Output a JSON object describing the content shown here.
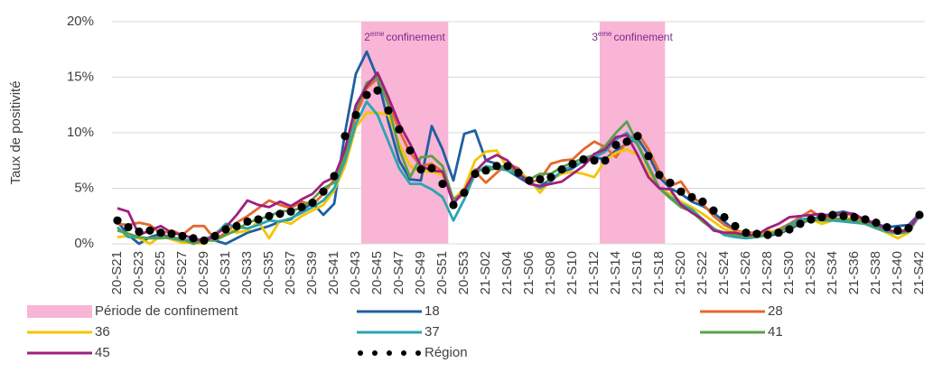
{
  "chart_data": {
    "type": "line",
    "ylabel": "Taux de positivité",
    "ylim": [
      0,
      20
    ],
    "yticks": [
      {
        "value": 0,
        "label": "0%"
      },
      {
        "value": 5,
        "label": "5%"
      },
      {
        "value": 10,
        "label": "10%"
      },
      {
        "value": 15,
        "label": "15%"
      },
      {
        "value": 20,
        "label": "20%"
      }
    ],
    "grid": true,
    "legend": "bottom",
    "annotations": [
      {
        "number": "2",
        "sup": "eme",
        "text": "confinement",
        "color": "#7b2a8c"
      },
      {
        "number": "3",
        "sup": "eme",
        "text": "confinement",
        "color": "#7b2a8c"
      }
    ],
    "categories": [
      "20-S21",
      null,
      "20-S23",
      null,
      "20-S25",
      null,
      "20-S27",
      null,
      "20-S29",
      null,
      "20-S31",
      null,
      "20-S33",
      null,
      "20-S35",
      null,
      "20-S37",
      null,
      "20-S39",
      null,
      "20-S41",
      null,
      "20-S43",
      null,
      "20-S45",
      null,
      "20-S47",
      null,
      "20-S49",
      null,
      "20-S51",
      null,
      "20-S53",
      null,
      "21-S02",
      null,
      "21-S04",
      null,
      "21-S06",
      null,
      "21-S08",
      null,
      "21-S10",
      null,
      "21-S12",
      null,
      "21-S14",
      null,
      "21-S16",
      null,
      "21-S18",
      null,
      "21-S20",
      null,
      "21-S22",
      null,
      "21-S24",
      null,
      "21-S26",
      null,
      "21-S28",
      null,
      "21-S30",
      null,
      "21-S32",
      null,
      "21-S34",
      null,
      "21-S36",
      null,
      "21-S38",
      null,
      "21-S40",
      null,
      "21-S42"
    ],
    "series": [
      {
        "name": "Période de confinement",
        "type": "bar",
        "color": "#f8b5d6",
        "values": [
          null,
          null,
          null,
          null,
          null,
          null,
          null,
          null,
          null,
          null,
          null,
          null,
          null,
          null,
          null,
          null,
          null,
          null,
          null,
          null,
          null,
          null,
          null,
          20,
          20,
          20,
          20,
          20,
          20,
          20,
          20,
          null,
          null,
          null,
          null,
          null,
          null,
          null,
          null,
          null,
          null,
          null,
          null,
          null,
          null,
          20,
          20,
          20,
          20,
          20,
          20,
          null,
          null,
          null,
          null,
          null,
          null,
          null,
          null,
          null,
          null,
          null,
          null,
          null,
          null,
          null,
          null,
          null,
          null,
          null,
          null,
          null,
          null,
          null,
          null
        ]
      },
      {
        "name": "18",
        "type": "line",
        "color": "#1f5fa0",
        "values": [
          2.0,
          0.8,
          0.0,
          0.6,
          0.9,
          0.5,
          0.4,
          0.2,
          0.4,
          0.3,
          0.0,
          0.5,
          1.0,
          1.3,
          1.6,
          2.0,
          2.2,
          3.0,
          3.7,
          2.6,
          3.6,
          10.0,
          15.3,
          17.3,
          14.9,
          11.0,
          7.5,
          5.8,
          5.7,
          10.6,
          8.5,
          5.7,
          9.9,
          10.2,
          7.5,
          7.2,
          6.6,
          6.0,
          5.4,
          5.2,
          5.8,
          6.5,
          6.8,
          7.5,
          7.8,
          7.6,
          8.4,
          9.0,
          9.5,
          8.0,
          6.0,
          5.0,
          4.5,
          3.8,
          3.4,
          2.8,
          2.0,
          1.2,
          0.9,
          0.8,
          0.7,
          0.9,
          1.3,
          1.8,
          2.2,
          2.5,
          2.7,
          2.9,
          2.6,
          2.2,
          1.8,
          1.5,
          1.6,
          1.7,
          2.7
        ]
      },
      {
        "name": "28",
        "type": "line",
        "color": "#e4692c",
        "values": [
          1.8,
          1.7,
          1.9,
          1.7,
          0.9,
          1.2,
          0.8,
          1.6,
          1.6,
          0.4,
          1.0,
          1.9,
          2.5,
          3.2,
          3.9,
          3.5,
          3.2,
          3.8,
          3.5,
          4.5,
          5.8,
          8.5,
          11.5,
          14.0,
          14.9,
          12.8,
          10.2,
          8.2,
          7.0,
          7.2,
          6.5,
          3.8,
          4.5,
          6.5,
          5.5,
          6.4,
          7.2,
          6.8,
          5.5,
          5.8,
          7.2,
          7.5,
          7.6,
          8.5,
          9.2,
          8.7,
          7.8,
          9.2,
          10.0,
          8.5,
          6.5,
          5.2,
          5.6,
          4.2,
          3.6,
          2.5,
          1.7,
          1.2,
          1.0,
          1.0,
          0.9,
          1.3,
          1.8,
          2.4,
          3.0,
          2.3,
          2.5,
          2.8,
          2.5,
          2.0,
          1.6,
          1.2,
          1.0,
          1.4,
          2.7
        ]
      },
      {
        "name": "36",
        "type": "line",
        "color": "#f5c400",
        "values": [
          0.6,
          0.7,
          0.5,
          0.0,
          0.7,
          0.4,
          0.1,
          0.1,
          0.0,
          1.0,
          1.5,
          1.0,
          1.2,
          2.0,
          0.5,
          2.1,
          1.8,
          2.5,
          3.0,
          3.5,
          4.8,
          7.0,
          10.5,
          11.8,
          11.8,
          11.6,
          9.0,
          7.0,
          6.5,
          6.5,
          6.2,
          4.0,
          5.0,
          7.5,
          8.3,
          8.4,
          6.8,
          6.5,
          5.8,
          4.6,
          5.8,
          6.3,
          6.5,
          6.3,
          6.0,
          7.5,
          8.2,
          8.5,
          8.0,
          6.3,
          5.0,
          4.5,
          3.8,
          3.3,
          2.7,
          2.0,
          1.3,
          1.0,
          1.0,
          0.7,
          1.2,
          1.0,
          1.5,
          1.9,
          2.2,
          1.8,
          2.1,
          2.4,
          2.2,
          1.8,
          1.4,
          1.0,
          0.5,
          1.0,
          2.6
        ]
      },
      {
        "name": "37",
        "type": "line",
        "color": "#2aa5b0",
        "values": [
          1.5,
          0.6,
          0.6,
          0.5,
          0.6,
          0.5,
          0.3,
          0.4,
          0.4,
          0.8,
          1.8,
          1.5,
          1.4,
          1.7,
          2.1,
          2.0,
          2.3,
          2.8,
          3.3,
          3.9,
          5.0,
          7.5,
          10.8,
          12.8,
          11.6,
          9.2,
          6.8,
          5.4,
          5.4,
          4.9,
          4.2,
          2.1,
          4.0,
          6.3,
          7.0,
          6.8,
          6.6,
          6.2,
          5.6,
          5.0,
          5.6,
          6.6,
          7.0,
          7.4,
          7.8,
          8.3,
          9.4,
          10.0,
          8.9,
          6.9,
          5.0,
          4.2,
          3.6,
          3.1,
          2.2,
          1.4,
          0.8,
          0.6,
          0.5,
          0.6,
          0.8,
          1.1,
          1.7,
          2.2,
          2.3,
          2.1,
          2.1,
          2.0,
          1.9,
          1.8,
          1.4,
          1.1,
          0.9,
          1.1,
          2.5
        ]
      },
      {
        "name": "41",
        "type": "line",
        "color": "#5aa04a",
        "values": [
          1.2,
          0.9,
          0.6,
          0.5,
          0.5,
          0.6,
          0.4,
          0.0,
          0.3,
          0.3,
          0.8,
          1.2,
          1.9,
          2.2,
          2.5,
          2.9,
          3.0,
          3.2,
          4.0,
          5.0,
          5.5,
          8.0,
          12.0,
          14.5,
          15.0,
          12.5,
          8.5,
          6.0,
          7.8,
          7.9,
          7.0,
          4.0,
          4.6,
          6.7,
          6.6,
          6.8,
          7.1,
          6.2,
          5.8,
          6.3,
          6.3,
          6.9,
          7.3,
          7.7,
          8.0,
          8.8,
          10.0,
          11.0,
          9.0,
          7.0,
          5.0,
          4.1,
          3.3,
          2.9,
          2.0,
          1.3,
          1.0,
          0.8,
          0.7,
          0.6,
          0.9,
          1.1,
          1.5,
          1.9,
          2.2,
          2.1,
          2.3,
          2.2,
          2.1,
          1.9,
          1.6,
          1.2,
          0.9,
          1.2,
          2.7
        ]
      },
      {
        "name": "45",
        "type": "line",
        "color": "#a0207f",
        "values": [
          3.2,
          2.9,
          0.8,
          1.2,
          1.6,
          1.0,
          0.8,
          0.5,
          0.2,
          0.8,
          1.5,
          2.6,
          3.9,
          3.5,
          3.3,
          3.8,
          3.4,
          4.0,
          4.5,
          5.5,
          6.0,
          8.5,
          12.5,
          14.2,
          15.4,
          13.2,
          10.8,
          9.0,
          7.0,
          6.6,
          6.5,
          3.6,
          4.8,
          6.5,
          7.5,
          8.0,
          7.5,
          6.4,
          5.4,
          5.2,
          5.4,
          5.6,
          6.3,
          7.0,
          8.1,
          8.5,
          9.6,
          9.8,
          8.0,
          6.0,
          5.0,
          4.9,
          3.5,
          2.8,
          2.2,
          1.2,
          1.0,
          1.0,
          0.8,
          0.8,
          1.4,
          1.8,
          2.4,
          2.5,
          2.6,
          2.7,
          2.4,
          2.8,
          2.7,
          2.1,
          1.8,
          1.3,
          1.0,
          1.3,
          2.7
        ]
      },
      {
        "name": "Région",
        "type": "line",
        "line_style": "dotted",
        "color": "#000000",
        "values": [
          2.1,
          1.5,
          1.1,
          1.2,
          1.0,
          0.9,
          0.7,
          0.5,
          0.3,
          0.7,
          1.3,
          1.6,
          2.0,
          2.2,
          2.5,
          2.7,
          2.9,
          3.3,
          3.7,
          4.7,
          6.1,
          9.7,
          11.6,
          13.4,
          13.8,
          12.0,
          10.3,
          8.4,
          6.7,
          6.8,
          5.4,
          3.5,
          4.6,
          6.3,
          6.6,
          7.0,
          7.0,
          6.4,
          5.7,
          5.8,
          6.0,
          6.7,
          7.2,
          7.6,
          7.5,
          7.5,
          8.9,
          9.2,
          9.7,
          7.9,
          6.2,
          5.5,
          4.7,
          4.2,
          3.8,
          3.0,
          2.4,
          1.6,
          1.0,
          0.9,
          0.8,
          1.0,
          1.3,
          1.8,
          2.2,
          2.4,
          2.6,
          2.5,
          2.4,
          2.2,
          1.9,
          1.5,
          1.2,
          1.4,
          2.6
        ]
      }
    ]
  }
}
